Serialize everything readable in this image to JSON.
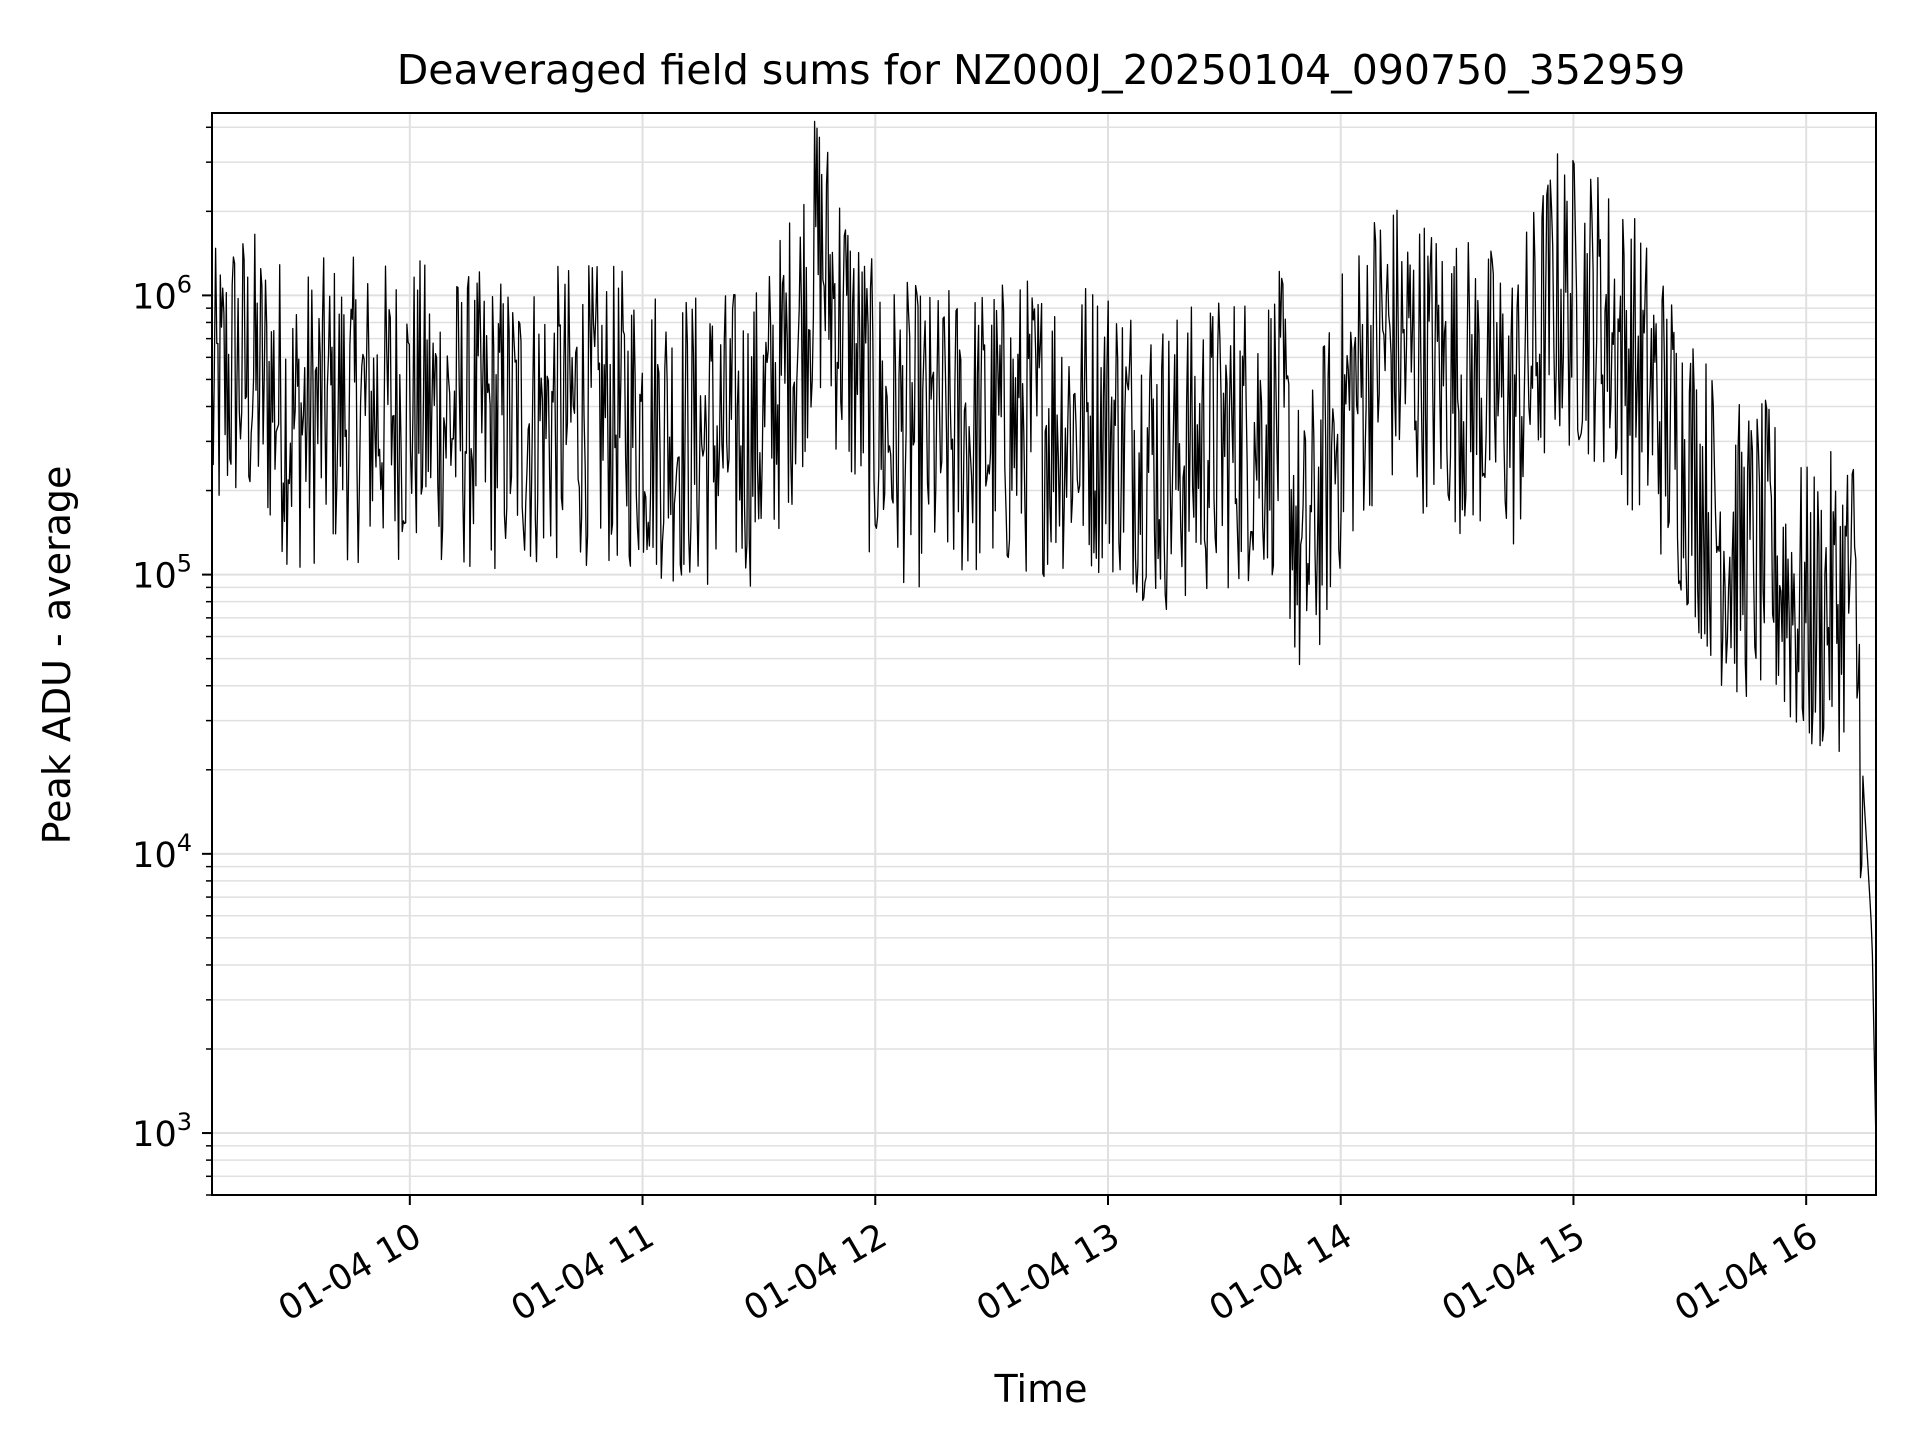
{
  "chart_data": {
    "type": "line",
    "title": "Deaveraged field sums for NZ000J_20250104_090750_352959",
    "xlabel": "Time",
    "ylabel": "Peak ADU - average",
    "yscale": "log",
    "ylim": [
      600,
      4500000
    ],
    "xlim": [
      "2025-01-04 09:09",
      "2025-01-04 16:18"
    ],
    "grid": true,
    "line_color": "#000000",
    "grid_color": "#e0e0e0",
    "x_ticks": [
      {
        "label": "01-04 10",
        "value": "2025-01-04 10:00"
      },
      {
        "label": "01-04 11",
        "value": "2025-01-04 11:00"
      },
      {
        "label": "01-04 12",
        "value": "2025-01-04 12:00"
      },
      {
        "label": "01-04 13",
        "value": "2025-01-04 13:00"
      },
      {
        "label": "01-04 14",
        "value": "2025-01-04 14:00"
      },
      {
        "label": "01-04 15",
        "value": "2025-01-04 15:00"
      },
      {
        "label": "01-04 16",
        "value": "2025-01-04 16:00"
      }
    ],
    "y_ticks": [
      {
        "base": "10",
        "exp": "3",
        "value": 1000
      },
      {
        "base": "10",
        "exp": "4",
        "value": 10000
      },
      {
        "base": "10",
        "exp": "5",
        "value": 100000
      },
      {
        "base": "10",
        "exp": "6",
        "value": 1000000
      }
    ],
    "series": [
      {
        "x": [
          "2025-01-04 09:09",
          "2025-01-04 09:15",
          "2025-01-04 09:20",
          "2025-01-04 09:25",
          "2025-01-04 09:30",
          "2025-01-04 09:40",
          "2025-01-04 09:50",
          "2025-01-04 10:00",
          "2025-01-04 10:15",
          "2025-01-04 10:30",
          "2025-01-04 10:45",
          "2025-01-04 11:00",
          "2025-01-04 11:15",
          "2025-01-04 11:30",
          "2025-01-04 11:40",
          "2025-01-04 11:45",
          "2025-01-04 12:00",
          "2025-01-04 12:15",
          "2025-01-04 12:30",
          "2025-01-04 12:45",
          "2025-01-04 13:00",
          "2025-01-04 13:15",
          "2025-01-04 13:30",
          "2025-01-04 13:45",
          "2025-01-04 13:50",
          "2025-01-04 14:00",
          "2025-01-04 14:10",
          "2025-01-04 14:20",
          "2025-01-04 14:30",
          "2025-01-04 14:45",
          "2025-01-04 14:55",
          "2025-01-04 15:05",
          "2025-01-04 15:15",
          "2025-01-04 15:30",
          "2025-01-04 15:40",
          "2025-01-04 15:50",
          "2025-01-04 16:00",
          "2025-01-04 16:08",
          "2025-01-04 16:12",
          "2025-01-04 16:15",
          "2025-01-04 16:17",
          "2025-01-04 16:18"
        ],
        "y": [
          400000,
          550000,
          500000,
          450000,
          350000,
          400000,
          380000,
          400000,
          350000,
          350000,
          380000,
          350000,
          300000,
          320000,
          700000,
          1500000,
          350000,
          300000,
          330000,
          350000,
          350000,
          250000,
          300000,
          350000,
          100000,
          350000,
          700000,
          600000,
          500000,
          400000,
          1000000,
          900000,
          600000,
          250000,
          120000,
          120000,
          70000,
          80000,
          100000,
          15000,
          5000,
          900
        ]
      }
    ]
  }
}
